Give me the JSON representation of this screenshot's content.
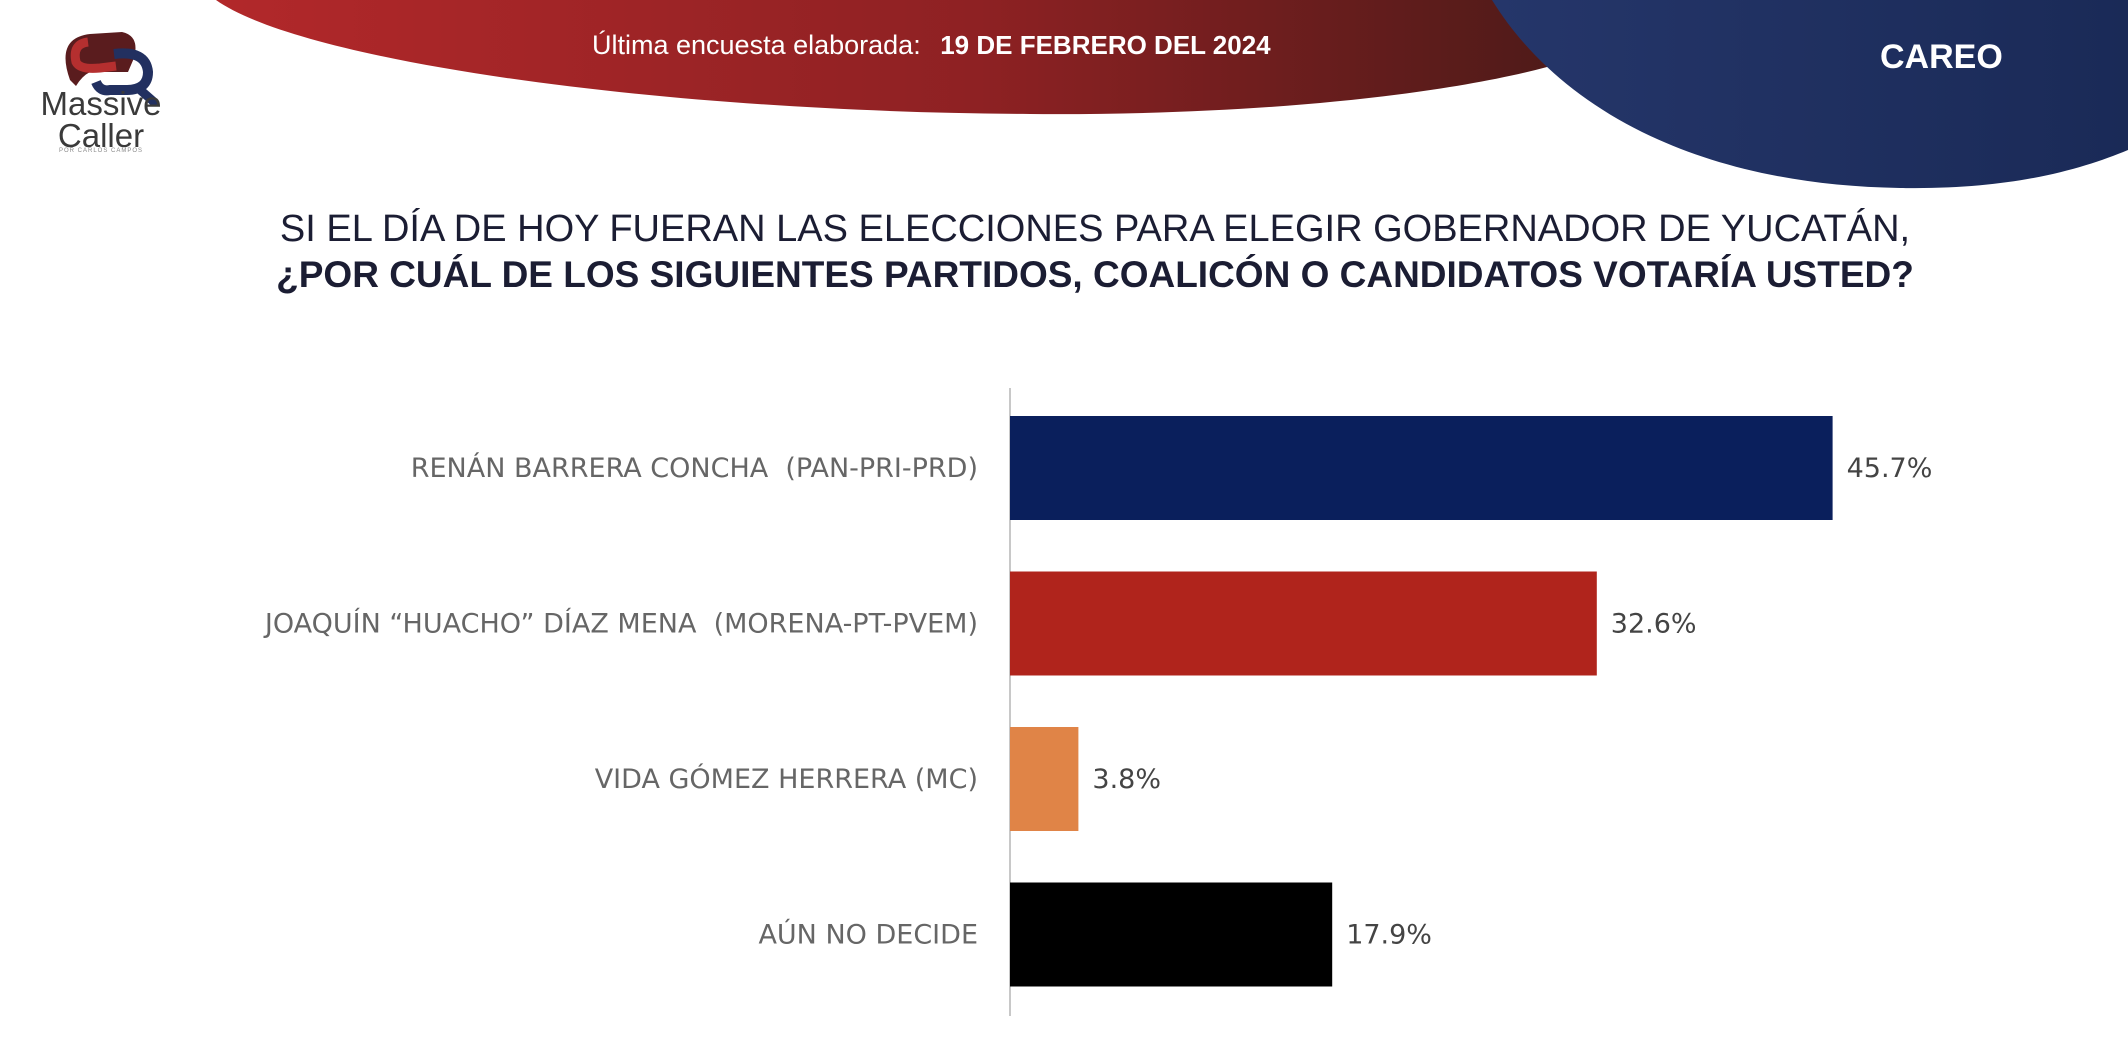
{
  "logo": {
    "name_line1": "Massive",
    "name_line2": "Caller",
    "tagline": "POR CARLOS CAMPOS"
  },
  "header": {
    "survey_label": "Última encuesta elaborada:",
    "survey_date": "19 DE FEBRERO DEL 2024",
    "tag": "CAREO"
  },
  "question": {
    "line1": "SI EL DÍA DE HOY FUERAN LAS ELECCIONES PARA ELEGIR GOBERNADOR DE YUCATÁN,",
    "line2": "¿POR CUÁL DE LOS SIGUIENTES  PARTIDOS, COALICÓN  O CANDIDATOS  VOTARÍA USTED?"
  },
  "colors": {
    "red_band": "#b2282a",
    "navy_band": "#1f2f5e",
    "axis": "#c8c8c8"
  },
  "chart_data": {
    "type": "bar",
    "orientation": "horizontal",
    "categories": [
      "RENÁN BARRERA CONCHA  (PAN-PRI-PRD)",
      "JOAQUÍN “HUACHO” DÍAZ MENA  (MORENA-PT-PVEM)",
      "VIDA GÓMEZ HERRERA (MC)",
      "AÚN NO DECIDE"
    ],
    "values": [
      45.7,
      32.6,
      3.8,
      17.9
    ],
    "value_labels": [
      "45.7%",
      "32.6%",
      "3.8%",
      "17.9%"
    ],
    "bar_colors": [
      "#0a1f5c",
      "#b0241c",
      "#e08447",
      "#000000"
    ],
    "title": "",
    "xlabel": "",
    "ylabel": "",
    "unit": "%",
    "grid": false,
    "legend": false
  }
}
